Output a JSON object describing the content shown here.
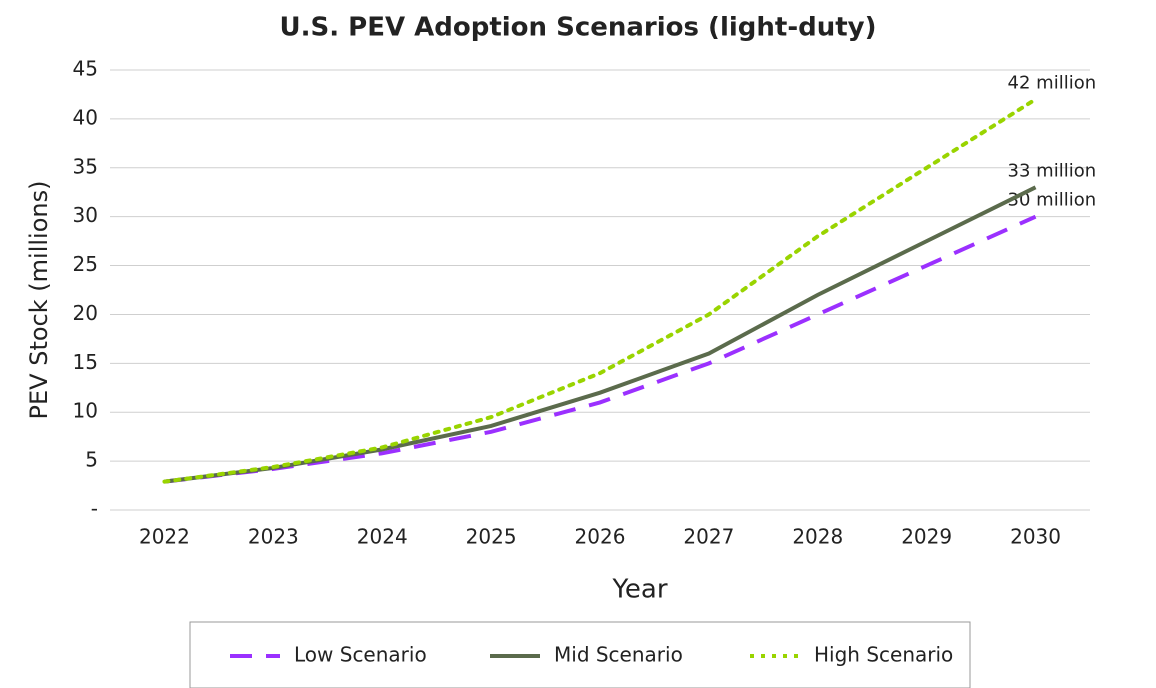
{
  "chart_data": {
    "type": "line",
    "title": "U.S. PEV Adoption Scenarios (light-duty)",
    "x_label": "Year",
    "y_label": "PEV Stock (millions)",
    "categories": [
      "2022",
      "2023",
      "2024",
      "2025",
      "2026",
      "2027",
      "2028",
      "2029",
      "2030"
    ],
    "series": [
      {
        "name": "Low Scenario",
        "color": "#9b30ff",
        "dash": "dashed",
        "values": [
          2.9,
          4.2,
          5.8,
          8,
          11,
          15,
          20,
          25,
          30
        ]
      },
      {
        "name": "Mid Scenario",
        "color": "#5b6b4c",
        "dash": "solid",
        "values": [
          2.9,
          4.3,
          6.2,
          8.6,
          12,
          16,
          22,
          27.5,
          33
        ]
      },
      {
        "name": "High Scenario",
        "color": "#99d400",
        "dash": "dotted",
        "values": [
          2.9,
          4.4,
          6.4,
          9.5,
          14,
          20,
          28,
          35,
          42
        ]
      }
    ],
    "annotations": [
      "30 million",
      "33 million",
      "42 million"
    ],
    "ylim": [
      0,
      45
    ],
    "yticks": [
      {
        "value": 0,
        "label": "-"
      },
      5,
      10,
      15,
      20,
      25,
      30,
      35,
      40,
      45
    ],
    "grid": true
  }
}
